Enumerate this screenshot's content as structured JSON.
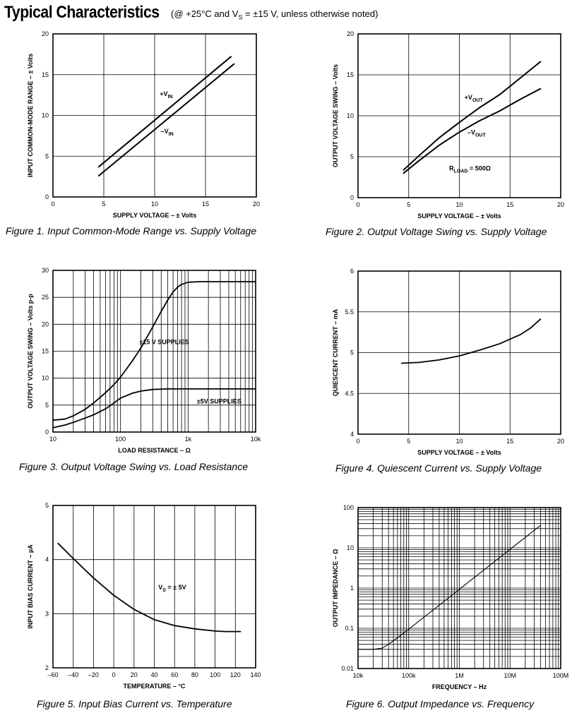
{
  "header": {
    "title": "Typical Characteristics",
    "conditions_prefix": "(@ +25°C and V",
    "conditions_sub": "S",
    "conditions_suffix": " = ±15 V, unless otherwise noted)"
  },
  "chart_data": [
    {
      "id": "fig1",
      "type": "line",
      "caption": "Figure 1.  Input Common-Mode Range vs. Supply Voltage",
      "xlabel": "SUPPLY VOLTAGE – ± Volts",
      "ylabel": "INPUT COMMON-MODE RANGE – ± Volts",
      "xlim": [
        0,
        20
      ],
      "ylim": [
        0,
        20
      ],
      "xscale": "linear",
      "yscale": "linear",
      "xticks": [
        0,
        5,
        10,
        15,
        20
      ],
      "yticks": [
        0,
        5,
        10,
        15,
        20
      ],
      "xtick_labels": [
        "0",
        "5",
        "10",
        "15",
        "20"
      ],
      "ytick_labels": [
        "0",
        "5",
        "10",
        "15",
        "20"
      ],
      "xgrid": [
        5,
        10,
        15
      ],
      "ygrid": [
        5,
        10,
        15
      ],
      "series": [
        {
          "name": "+V",
          "name_sub": "IN",
          "x": [
            4.5,
            17.5
          ],
          "y": [
            3.7,
            17.2
          ],
          "label_at": [
            10.5,
            12.4
          ],
          "width": 2
        },
        {
          "name": "–V",
          "name_sub": "IN",
          "x": [
            4.5,
            17.8
          ],
          "y": [
            2.6,
            16.3
          ],
          "label_at": [
            10.6,
            7.8
          ],
          "width": 2
        }
      ],
      "annotations": []
    },
    {
      "id": "fig2",
      "type": "line",
      "caption": "Figure 2.  Output Voltage Swing vs. Supply Voltage",
      "xlabel": "SUPPLY VOLTAGE – ± Volts",
      "ylabel": "OUTPUT VOLTAGE SWING – Volts",
      "xlim": [
        0,
        20
      ],
      "ylim": [
        0,
        20
      ],
      "xscale": "linear",
      "yscale": "linear",
      "xticks": [
        0,
        5,
        10,
        15,
        20
      ],
      "yticks": [
        0,
        5,
        10,
        15,
        20
      ],
      "xtick_labels": [
        "0",
        "5",
        "10",
        "15",
        "20"
      ],
      "ytick_labels": [
        "0",
        "5",
        "10",
        "15",
        "20"
      ],
      "xgrid": [
        5,
        10,
        15
      ],
      "ygrid": [
        5,
        10,
        15
      ],
      "series": [
        {
          "name": "+V",
          "name_sub": "OUT",
          "x": [
            4.5,
            6,
            8,
            10,
            12,
            14,
            16,
            18
          ],
          "y": [
            3.4,
            5.1,
            7.3,
            9.2,
            11.0,
            12.6,
            14.6,
            16.6
          ],
          "label_at": [
            10.5,
            12.0
          ],
          "width": 2
        },
        {
          "name": "–V",
          "name_sub": "OUT",
          "x": [
            4.5,
            6,
            8,
            10,
            12,
            14,
            16,
            18
          ],
          "y": [
            3.0,
            4.5,
            6.4,
            8.0,
            9.4,
            10.6,
            12.0,
            13.3
          ],
          "label_at": [
            10.8,
            7.7
          ],
          "width": 2
        }
      ],
      "annotations": [
        {
          "text": "R",
          "sub": "LOAD",
          "after": " = 500Ω",
          "at": [
            9.0,
            3.3
          ]
        }
      ]
    },
    {
      "id": "fig3",
      "type": "line",
      "caption": "Figure 3.  Output Voltage Swing vs. Load Resistance",
      "xlabel": "LOAD RESISTANCE – Ω",
      "ylabel": "OUTPUT VOLTAGE SWING – Volts p-p",
      "xlim": [
        10,
        10000
      ],
      "ylim": [
        0,
        30
      ],
      "xscale": "log",
      "yscale": "linear",
      "xticks": [
        10,
        100,
        1000,
        10000
      ],
      "yticks": [
        0,
        5,
        10,
        15,
        20,
        25,
        30
      ],
      "xtick_labels": [
        "10",
        "100",
        "1k",
        "10k"
      ],
      "ytick_labels": [
        "0",
        "5",
        "10",
        "15",
        "20",
        "25",
        "30"
      ],
      "xgrid": [
        20,
        30,
        40,
        50,
        60,
        70,
        80,
        90,
        100,
        200,
        300,
        400,
        500,
        600,
        700,
        800,
        900,
        1000,
        2000,
        3000,
        4000,
        5000,
        6000,
        7000,
        8000,
        9000
      ],
      "ygrid": [
        5,
        10,
        15,
        20,
        25
      ],
      "series": [
        {
          "name": "±15 V SUPPLIES",
          "x": [
            10,
            15,
            20,
            30,
            40,
            60,
            80,
            100,
            150,
            200,
            300,
            400,
            500,
            600,
            700,
            800,
            1000,
            1500,
            2000,
            5000,
            10000
          ],
          "y": [
            2.2,
            2.4,
            3.0,
            4.2,
            5.4,
            7.3,
            8.8,
            10.2,
            13.2,
            15.6,
            19.5,
            22.4,
            24.5,
            26.0,
            26.9,
            27.4,
            27.8,
            27.9,
            27.9,
            27.9,
            27.9
          ],
          "label_at": [
            190,
            16.3
          ],
          "width": 1.8
        },
        {
          "name": "±5V SUPPLIES",
          "x": [
            10,
            15,
            20,
            30,
            40,
            60,
            80,
            100,
            150,
            200,
            300,
            500,
            1000,
            10000
          ],
          "y": [
            0.8,
            1.3,
            1.8,
            2.6,
            3.2,
            4.3,
            5.4,
            6.3,
            7.2,
            7.6,
            7.9,
            8.0,
            8.0,
            8.0
          ],
          "label_at": [
            1350,
            5.3
          ],
          "width": 1.8
        }
      ],
      "annotations": []
    },
    {
      "id": "fig4",
      "type": "line",
      "caption": "Figure 4.  Quiescent Current vs. Supply Voltage",
      "xlabel": "SUPPLY VOLTAGE – ± Volts",
      "ylabel": "QUIESCENT CURRENT – mA",
      "xlim": [
        0,
        20
      ],
      "ylim": [
        4,
        6
      ],
      "xscale": "linear",
      "yscale": "linear",
      "xticks": [
        0,
        5,
        10,
        15,
        20
      ],
      "yticks": [
        4,
        4.5,
        5,
        5.5,
        6
      ],
      "xtick_labels": [
        "0",
        "5",
        "10",
        "15",
        "20"
      ],
      "ytick_labels": [
        "4",
        "4.5",
        "5",
        "5.5",
        "6"
      ],
      "xgrid": [
        5,
        10,
        15
      ],
      "ygrid": [
        4.5,
        5,
        5.5
      ],
      "series": [
        {
          "name": "",
          "x": [
            4.3,
            6,
            8,
            10,
            12,
            14,
            16,
            17,
            18
          ],
          "y": [
            4.87,
            4.88,
            4.91,
            4.96,
            5.03,
            5.11,
            5.22,
            5.3,
            5.41
          ],
          "width": 1.8
        }
      ],
      "annotations": []
    },
    {
      "id": "fig5",
      "type": "line",
      "caption": "Figure 5.  Input Bias Current vs. Temperature",
      "xlabel": "TEMPERATURE – °C",
      "ylabel": "INPUT BIAS CURRENT – µA",
      "xlim": [
        -60,
        140
      ],
      "ylim": [
        2,
        5
      ],
      "xscale": "linear",
      "yscale": "linear",
      "xticks": [
        -60,
        -40,
        -20,
        0,
        20,
        40,
        60,
        80,
        100,
        120,
        140
      ],
      "yticks": [
        2,
        3,
        4,
        5
      ],
      "xtick_labels": [
        "–60",
        "–40",
        "–20",
        "0",
        "20",
        "40",
        "60",
        "80",
        "100",
        "120",
        "140"
      ],
      "ytick_labels": [
        "2",
        "3",
        "4",
        "5"
      ],
      "xgrid": [
        -40,
        -20,
        0,
        20,
        40,
        60,
        80,
        100,
        120
      ],
      "ygrid": [
        3,
        4
      ],
      "series": [
        {
          "name": "",
          "x": [
            -55,
            -40,
            -20,
            0,
            20,
            40,
            60,
            80,
            100,
            110,
            125
          ],
          "y": [
            4.3,
            4.02,
            3.66,
            3.34,
            3.08,
            2.89,
            2.78,
            2.72,
            2.68,
            2.67,
            2.67
          ],
          "width": 1.8
        }
      ],
      "annotations": [
        {
          "text": "V",
          "sub": "S",
          "after": " = ± 5V",
          "at": [
            44,
            3.45
          ]
        }
      ]
    },
    {
      "id": "fig6",
      "type": "line",
      "caption": "Figure 6.  Output Impedance vs. Frequency",
      "xlabel": "FREQUENCY – Hz",
      "ylabel": "OUTPUT IMPEDANCE – Ω",
      "xlim": [
        10000,
        100000000
      ],
      "ylim": [
        0.01,
        100
      ],
      "xscale": "log",
      "yscale": "log",
      "xticks": [
        10000,
        100000,
        1000000,
        10000000,
        100000000
      ],
      "yticks": [
        0.01,
        0.1,
        1,
        10,
        100
      ],
      "xtick_labels": [
        "10k",
        "100k",
        "1M",
        "10M",
        "100M"
      ],
      "ytick_labels": [
        "0.01",
        "0.1",
        "1",
        "10",
        "100"
      ],
      "xgrid": [
        20000,
        30000,
        40000,
        50000,
        60000,
        70000,
        80000,
        90000,
        100000,
        200000,
        300000,
        400000,
        500000,
        600000,
        700000,
        800000,
        900000,
        1000000,
        2000000,
        3000000,
        4000000,
        5000000,
        6000000,
        7000000,
        8000000,
        9000000,
        10000000,
        20000000,
        30000000,
        40000000,
        50000000,
        60000000,
        70000000,
        80000000,
        90000000
      ],
      "ygrid": [
        0.02,
        0.03,
        0.04,
        0.05,
        0.06,
        0.07,
        0.08,
        0.09,
        0.1,
        0.2,
        0.3,
        0.4,
        0.5,
        0.6,
        0.7,
        0.8,
        0.9,
        1,
        2,
        3,
        4,
        5,
        6,
        7,
        8,
        9,
        10,
        20,
        30,
        40,
        50,
        60,
        70,
        80,
        90
      ],
      "series": [
        {
          "name": "",
          "x": [
            10000,
            20000,
            30000,
            40000,
            60000,
            100000,
            1000000,
            10000000,
            40000000
          ],
          "y": [
            0.03,
            0.03,
            0.032,
            0.04,
            0.058,
            0.095,
            0.93,
            9.2,
            36
          ],
          "width": 1.1
        }
      ],
      "annotations": []
    }
  ]
}
